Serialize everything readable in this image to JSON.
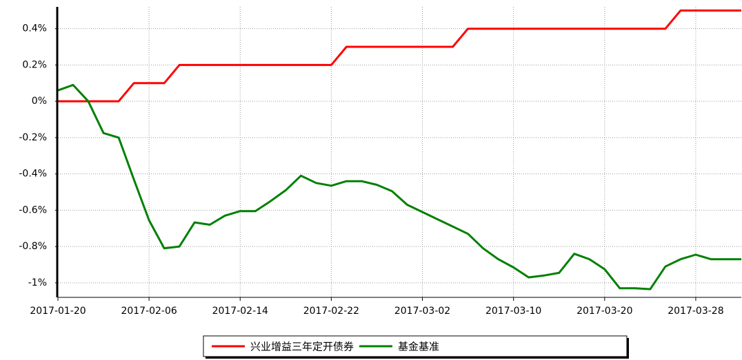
{
  "chart_data": {
    "type": "line",
    "categories": [
      "2017-01-20",
      null,
      null,
      null,
      null,
      null,
      "2017-02-06",
      null,
      null,
      null,
      null,
      null,
      "2017-02-14",
      null,
      null,
      null,
      null,
      null,
      "2017-02-22",
      null,
      null,
      null,
      null,
      null,
      "2017-03-02",
      null,
      null,
      null,
      null,
      null,
      "2017-03-10",
      null,
      null,
      null,
      null,
      null,
      "2017-03-20",
      null,
      null,
      null,
      null,
      null,
      "2017-03-28",
      null,
      null,
      null
    ],
    "series": [
      {
        "name": "兴业增益三年定开债券",
        "color": "#ff0000",
        "values": [
          0,
          0,
          0,
          0,
          0,
          0.1,
          0.1,
          0.1,
          0.2,
          0.2,
          0.2,
          0.2,
          0.2,
          0.2,
          0.2,
          0.2,
          0.2,
          0.2,
          0.2,
          0.3,
          0.3,
          0.3,
          0.3,
          0.3,
          0.3,
          0.3,
          0.3,
          0.4,
          0.4,
          0.4,
          0.4,
          0.4,
          0.4,
          0.4,
          0.4,
          0.4,
          0.4,
          0.4,
          0.4,
          0.4,
          0.4,
          0.5,
          0.5,
          0.5,
          0.5,
          0.5
        ]
      },
      {
        "name": "基金基准",
        "color": "#008000",
        "values": [
          0.06,
          0.09,
          0.0,
          -0.175,
          -0.2,
          -0.43,
          -0.655,
          -0.81,
          -0.8,
          -0.667,
          -0.68,
          -0.63,
          -0.605,
          -0.605,
          -0.55,
          -0.49,
          -0.41,
          -0.45,
          -0.465,
          -0.44,
          -0.44,
          -0.46,
          -0.495,
          -0.57,
          -0.61,
          -0.65,
          -0.69,
          -0.73,
          -0.81,
          -0.87,
          -0.915,
          -0.97,
          -0.96,
          -0.945,
          -0.84,
          -0.87,
          -0.925,
          -1.03,
          -1.03,
          -1.035,
          -0.91,
          -0.87,
          -0.845,
          -0.87,
          -0.87,
          -0.87
        ]
      }
    ],
    "ylim": [
      -1.08,
      0.52
    ],
    "yticks": [
      {
        "value": -1,
        "label": "-1%"
      },
      {
        "value": -0.8,
        "label": "-0.8%"
      },
      {
        "value": -0.6,
        "label": "-0.6%"
      },
      {
        "value": -0.4,
        "label": "-0.4%"
      },
      {
        "value": -0.2,
        "label": "-0.2%"
      },
      {
        "value": 0,
        "label": "0%"
      },
      {
        "value": 0.2,
        "label": "0.2%"
      },
      {
        "value": 0.4,
        "label": "0.4%"
      }
    ],
    "grid": true,
    "legend": "bottom"
  }
}
